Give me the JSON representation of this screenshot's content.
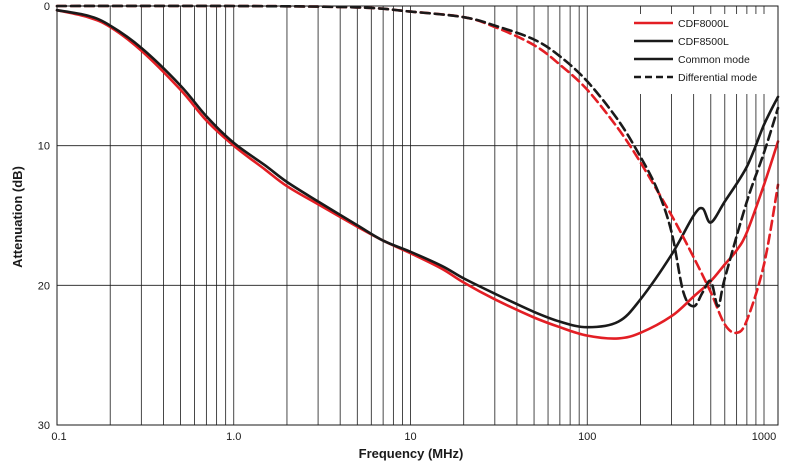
{
  "chart_data": {
    "type": "line",
    "xlabel": "Frequency (MHz)",
    "ylabel": "Attenuation (dB)",
    "xscale": "log",
    "xlim": [
      0.1,
      1200
    ],
    "ylim": [
      0,
      30
    ],
    "y_inverted": true,
    "grid": true,
    "legend_position": "top-right",
    "x_ticks": [
      {
        "value": 0.1,
        "label": "0.1"
      },
      {
        "value": 1,
        "label": "1.0"
      },
      {
        "value": 10,
        "label": "10"
      },
      {
        "value": 100,
        "label": "100"
      },
      {
        "value": 1000,
        "label": "1000"
      }
    ],
    "y_ticks": [
      {
        "value": 0,
        "label": "0"
      },
      {
        "value": 10,
        "label": "10"
      },
      {
        "value": 20,
        "label": "20"
      },
      {
        "value": 30,
        "label": "30"
      }
    ],
    "legend": [
      {
        "label": "CDF8000L",
        "color": "#e31e24",
        "dash": "solid"
      },
      {
        "label": "CDF8500L",
        "color": "#1a1a1a",
        "dash": "solid"
      },
      {
        "label": "Common mode",
        "color": "#1a1a1a",
        "dash": "solid"
      },
      {
        "label": "Differential mode",
        "color": "#1a1a1a",
        "dash": "dashed"
      }
    ],
    "series": [
      {
        "name": "CDF8000L Common mode",
        "color": "#e31e24",
        "dash": "solid",
        "points": [
          [
            0.1,
            0.3
          ],
          [
            0.15,
            0.8
          ],
          [
            0.2,
            1.5
          ],
          [
            0.3,
            3.2
          ],
          [
            0.5,
            6.0
          ],
          [
            0.7,
            8.2
          ],
          [
            1.0,
            10.0
          ],
          [
            1.5,
            11.7
          ],
          [
            2,
            12.9
          ],
          [
            3,
            14.2
          ],
          [
            5,
            15.8
          ],
          [
            7,
            16.8
          ],
          [
            10,
            17.7
          ],
          [
            15,
            18.8
          ],
          [
            20,
            19.8
          ],
          [
            30,
            21.0
          ],
          [
            50,
            22.3
          ],
          [
            70,
            23.0
          ],
          [
            100,
            23.6
          ],
          [
            150,
            23.8
          ],
          [
            200,
            23.4
          ],
          [
            300,
            22.2
          ],
          [
            400,
            20.8
          ],
          [
            500,
            19.7
          ],
          [
            600,
            18.5
          ],
          [
            700,
            17.5
          ],
          [
            800,
            16.2
          ],
          [
            1000,
            12.8
          ],
          [
            1200,
            9.7
          ]
        ]
      },
      {
        "name": "CDF8500L Common mode",
        "color": "#1a1a1a",
        "dash": "solid",
        "points": [
          [
            0.1,
            0.3
          ],
          [
            0.15,
            0.7
          ],
          [
            0.2,
            1.4
          ],
          [
            0.3,
            3.0
          ],
          [
            0.5,
            5.7
          ],
          [
            0.7,
            7.9
          ],
          [
            1.0,
            9.8
          ],
          [
            1.5,
            11.4
          ],
          [
            2,
            12.6
          ],
          [
            3,
            14.0
          ],
          [
            5,
            15.7
          ],
          [
            7,
            16.8
          ],
          [
            10,
            17.6
          ],
          [
            15,
            18.6
          ],
          [
            20,
            19.5
          ],
          [
            30,
            20.6
          ],
          [
            50,
            21.9
          ],
          [
            70,
            22.6
          ],
          [
            100,
            23.0
          ],
          [
            150,
            22.6
          ],
          [
            200,
            21.0
          ],
          [
            300,
            17.8
          ],
          [
            400,
            15.0
          ],
          [
            450,
            14.5
          ],
          [
            500,
            15.5
          ],
          [
            600,
            14.0
          ],
          [
            800,
            11.5
          ],
          [
            1000,
            8.5
          ],
          [
            1200,
            6.5
          ]
        ]
      },
      {
        "name": "CDF8000L Differential mode",
        "color": "#e31e24",
        "dash": "dashed",
        "points": [
          [
            0.1,
            0.0
          ],
          [
            1,
            0.0
          ],
          [
            5,
            0.1
          ],
          [
            10,
            0.4
          ],
          [
            20,
            0.8
          ],
          [
            30,
            1.5
          ],
          [
            50,
            2.8
          ],
          [
            70,
            4.2
          ],
          [
            100,
            6.0
          ],
          [
            150,
            8.8
          ],
          [
            200,
            11.2
          ],
          [
            300,
            15.0
          ],
          [
            400,
            18.0
          ],
          [
            500,
            20.5
          ],
          [
            600,
            22.8
          ],
          [
            700,
            23.4
          ],
          [
            800,
            22.5
          ],
          [
            1000,
            18.5
          ],
          [
            1200,
            12.8
          ]
        ]
      },
      {
        "name": "CDF8500L Differential mode",
        "color": "#1a1a1a",
        "dash": "dashed",
        "points": [
          [
            0.1,
            0.0
          ],
          [
            1,
            0.0
          ],
          [
            5,
            0.1
          ],
          [
            10,
            0.4
          ],
          [
            20,
            0.8
          ],
          [
            30,
            1.4
          ],
          [
            50,
            2.4
          ],
          [
            70,
            3.6
          ],
          [
            100,
            5.4
          ],
          [
            150,
            8.2
          ],
          [
            200,
            10.8
          ],
          [
            250,
            13.2
          ],
          [
            300,
            16.2
          ],
          [
            350,
            20.5
          ],
          [
            400,
            21.5
          ],
          [
            450,
            20.5
          ],
          [
            500,
            19.7
          ],
          [
            550,
            21.5
          ],
          [
            600,
            19.5
          ],
          [
            800,
            14.0
          ],
          [
            1000,
            10.5
          ],
          [
            1200,
            7.3
          ]
        ]
      }
    ]
  }
}
